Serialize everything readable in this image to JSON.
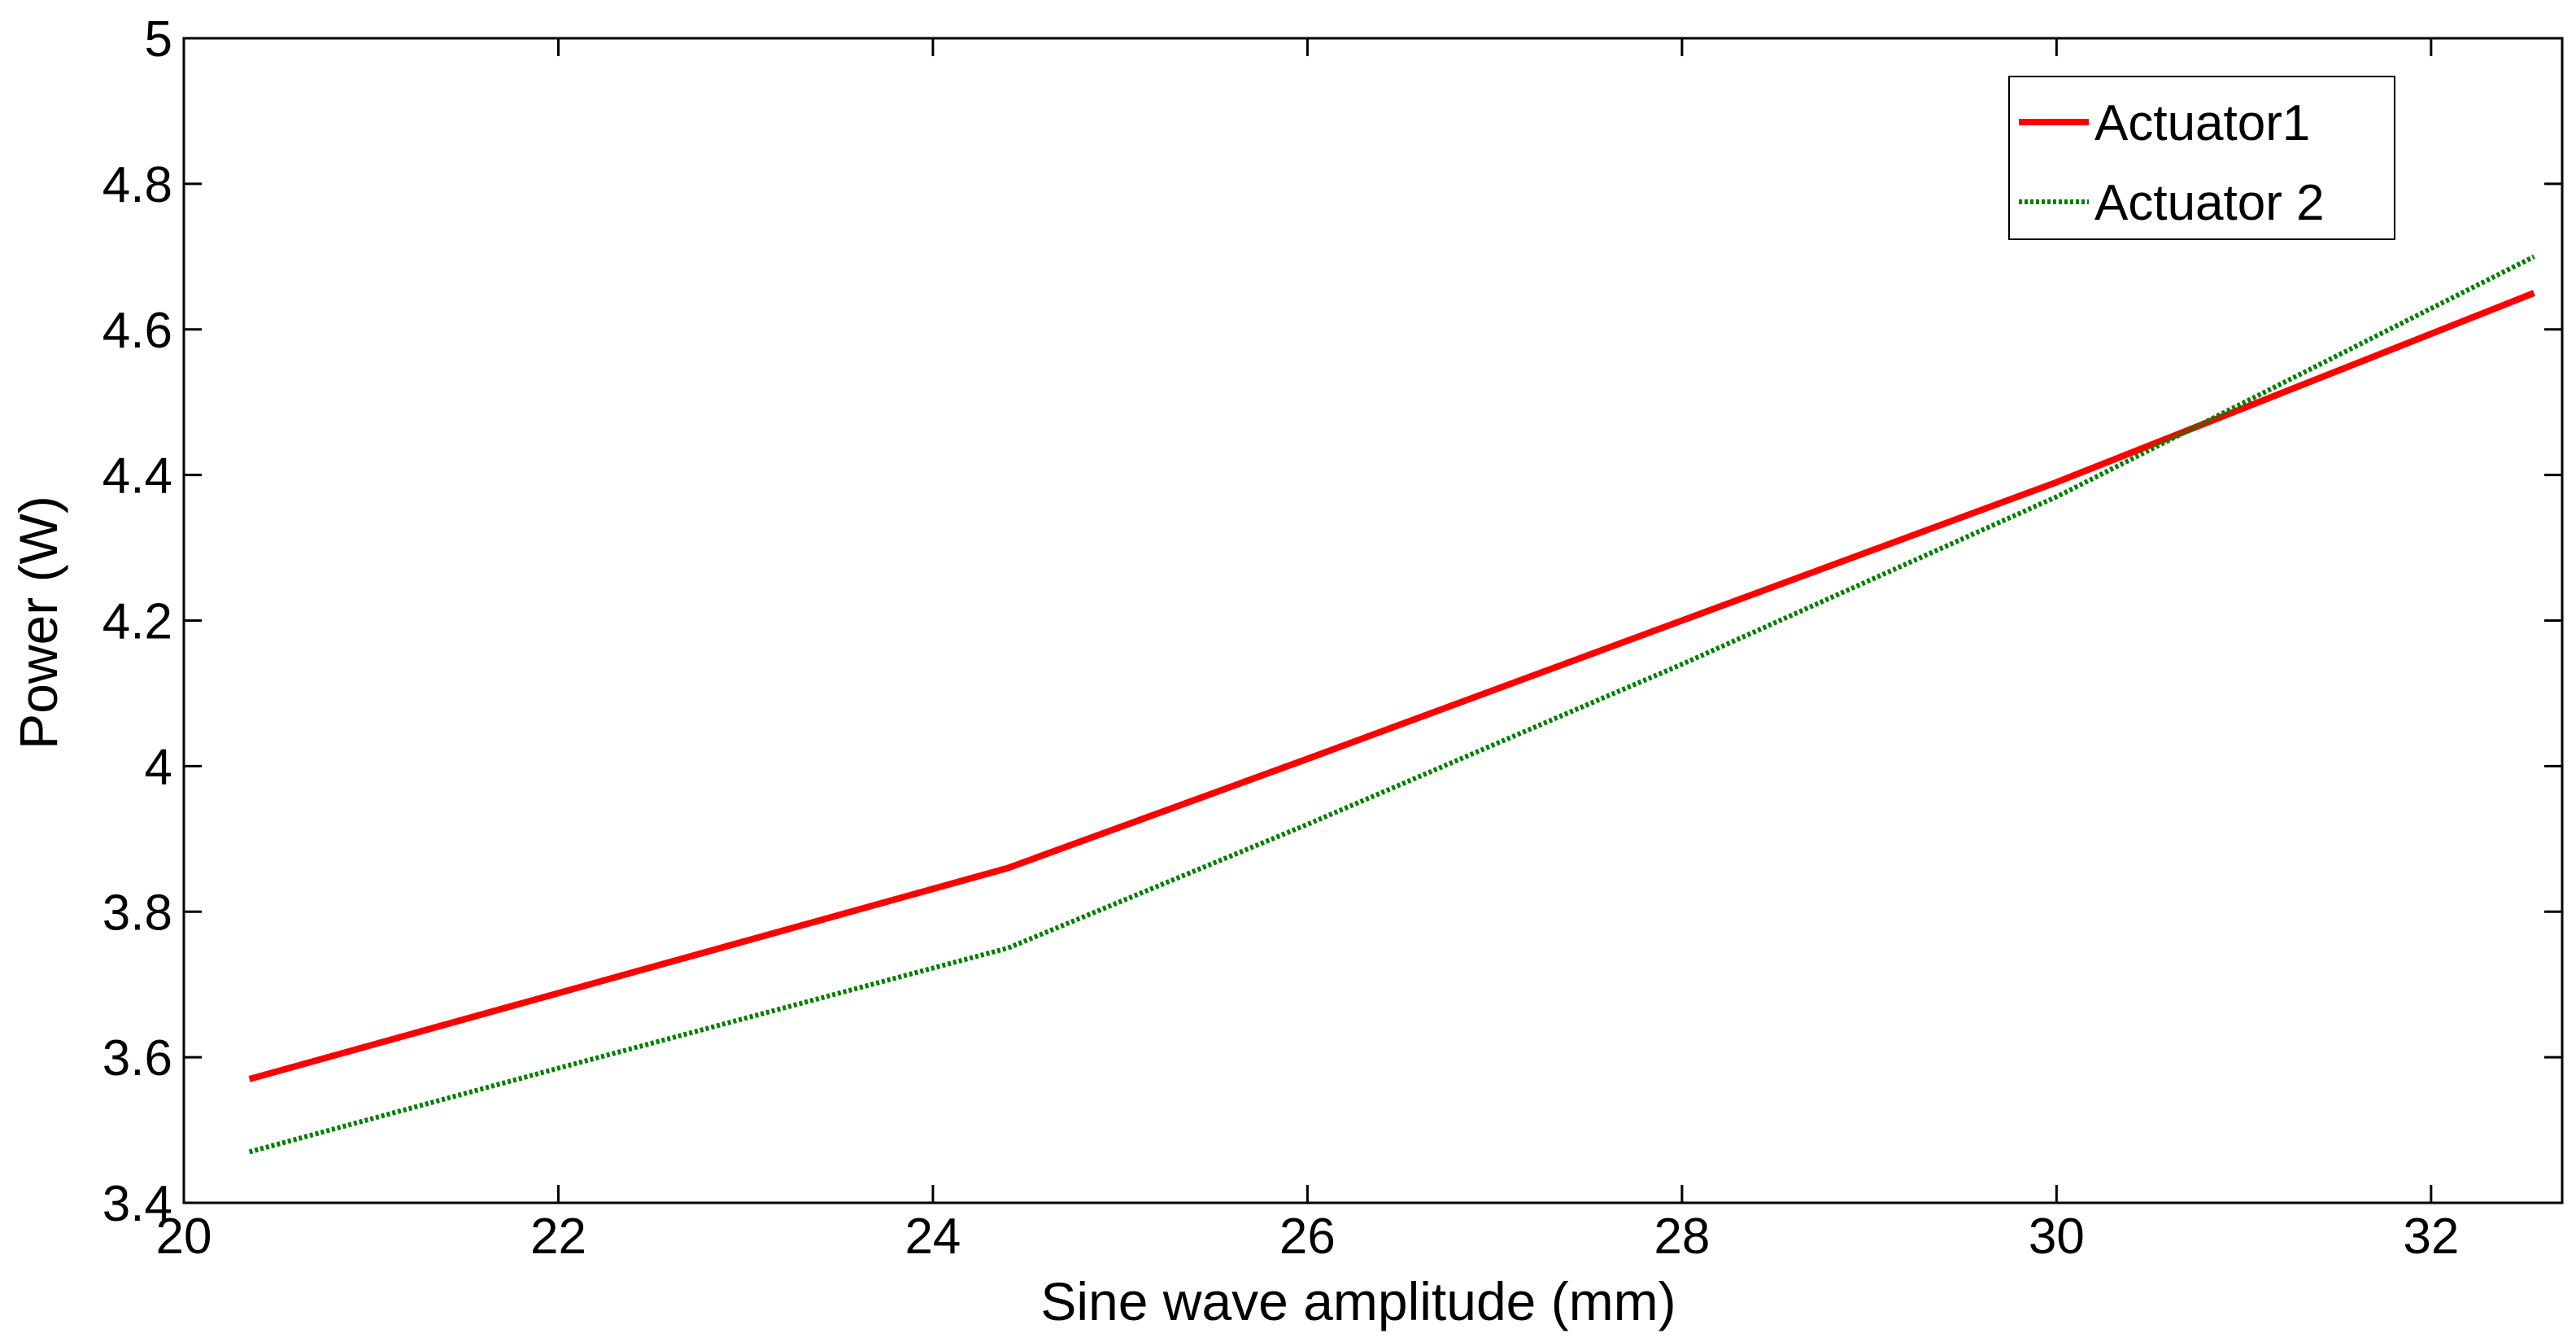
{
  "chart_data": {
    "type": "line",
    "title": "",
    "xlabel": "Sine wave amplitude (mm)",
    "ylabel": "Power (W)",
    "xlim": [
      20,
      32.7
    ],
    "ylim": [
      3.4,
      5
    ],
    "xticks": [
      20,
      22,
      24,
      26,
      28,
      30,
      32
    ],
    "yticks": [
      3.4,
      3.6,
      3.8,
      4,
      4.2,
      4.4,
      4.6,
      4.8,
      5
    ],
    "xtick_labels": [
      "20",
      "22",
      "24",
      "26",
      "28",
      "30",
      "32"
    ],
    "ytick_labels": [
      "3.4",
      "3.6",
      "3.8",
      "4",
      "4.2",
      "4.4",
      "4.6",
      "4.8",
      "5"
    ],
    "grid": false,
    "legend_position": "top-right",
    "series": [
      {
        "name": "Actuator1",
        "color": "#ff0000",
        "style": "solid",
        "x": [
          20.35,
          24.4,
          26.0,
          28.0,
          30.0,
          32.55
        ],
        "y": [
          3.57,
          3.86,
          4.01,
          4.2,
          4.39,
          4.65
        ]
      },
      {
        "name": "Actuator 2",
        "color": "#008000",
        "style": "dotted",
        "x": [
          20.35,
          22.0,
          24.4,
          26.0,
          28.0,
          30.0,
          32.55
        ],
        "y": [
          3.47,
          3.585,
          3.75,
          3.92,
          4.14,
          4.37,
          4.7
        ]
      }
    ]
  }
}
